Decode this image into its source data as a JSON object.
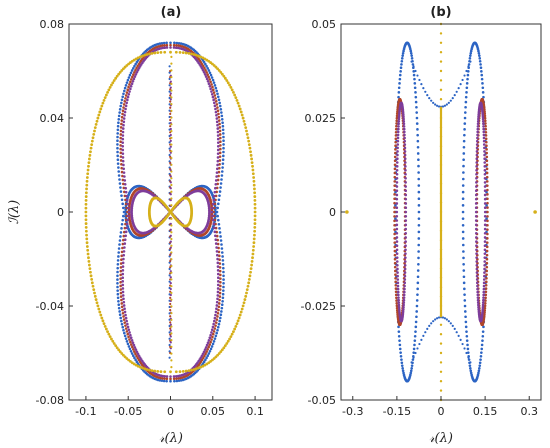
{
  "colors": {
    "blue": "#2c64c4",
    "red": "#b0452a",
    "purple": "#7e3d9a",
    "green": "#6f9a2a",
    "yellow": "#d6b01a",
    "axis": "#333333"
  },
  "chart_data": [
    {
      "type": "scatter",
      "title": "(a)",
      "xlabel": "𝓇(λ)",
      "ylabel": "ℐ(λ)",
      "xlim": [
        -0.12,
        0.12
      ],
      "ylim": [
        -0.08,
        0.08
      ],
      "xticks": [
        -0.1,
        -0.05,
        0,
        0.05,
        0.1
      ],
      "xtick_labels": [
        "-0.1",
        "-0.05",
        "0",
        "0.05",
        "0.1"
      ],
      "yticks": [
        -0.08,
        -0.04,
        0,
        0.04,
        0.08
      ],
      "ytick_labels": [
        "-0.08",
        "-0.04",
        "0",
        "0.04",
        "0.08"
      ],
      "grid": false,
      "series": [
        {
          "color_key": "blue",
          "outer": {
            "a": 0.073,
            "b": 0.072,
            "waist": 0.055,
            "y_waist": 0.011
          },
          "inner": {
            "a": 0.053,
            "b": 0.011
          },
          "imag_axis": 0.062
        },
        {
          "color_key": "red",
          "outer": {
            "a": 0.069,
            "b": 0.071,
            "waist": 0.051,
            "y_waist": 0.01
          },
          "inner": {
            "a": 0.049,
            "b": 0.01
          },
          "imag_axis": 0.06
        },
        {
          "color_key": "purple",
          "outer": {
            "a": 0.066,
            "b": 0.07,
            "waist": 0.049,
            "y_waist": 0.009
          },
          "inner": {
            "a": 0.046,
            "b": 0.009
          },
          "imag_axis": 0.058
        },
        {
          "color_key": "yellow",
          "outer": {
            "a": 0.1,
            "b": 0.068,
            "waist": 0.1,
            "y_waist": 0
          },
          "inner": {
            "a": 0.025,
            "b": 0.006
          },
          "imag_axis": 0.066
        }
      ]
    },
    {
      "type": "scatter",
      "title": "(b)",
      "xlabel": "𝓇(λ)",
      "ylabel": "",
      "xlim": [
        -0.34,
        0.34
      ],
      "ylim": [
        -0.05,
        0.05
      ],
      "xticks": [
        -0.3,
        -0.15,
        0,
        0.15,
        0.3
      ],
      "xtick_labels": [
        "-0.3",
        "-0.15",
        "0",
        "0.15",
        "0.3"
      ],
      "yticks": [
        -0.05,
        -0.025,
        0,
        0.025,
        0.05
      ],
      "ytick_labels": [
        "-0.05",
        "-0.025",
        "0",
        "0.025",
        "0.05"
      ],
      "grid": false,
      "series": [
        {
          "color_key": "blue",
          "lobe": {
            "cx": 0.115,
            "a": 0.04,
            "b": 0.045
          },
          "arc_y": 0.04
        },
        {
          "color_key": "red",
          "lobe": {
            "cx": 0.14,
            "a": 0.02,
            "b": 0.03
          }
        },
        {
          "color_key": "purple",
          "lobe": {
            "cx": 0.135,
            "a": 0.017,
            "b": 0.029
          }
        },
        {
          "color_key": "yellow",
          "isolated_x": 0.32,
          "imag_axis": 0.05,
          "imag_dense": 0.028
        }
      ]
    }
  ]
}
